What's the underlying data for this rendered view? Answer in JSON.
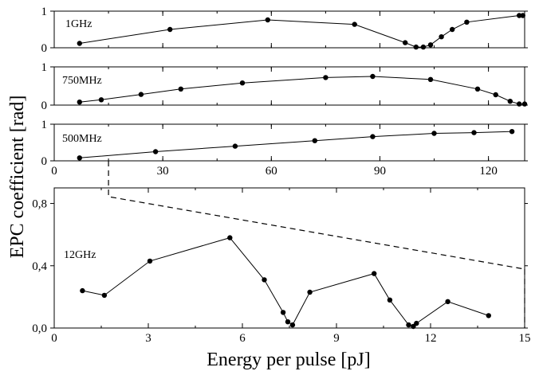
{
  "colors": {
    "line": "#000000",
    "marker": "#000000",
    "background": "#ffffff"
  },
  "chart_data": [
    {
      "type": "line",
      "panel_label": "1GHz",
      "x": [
        7,
        32,
        59,
        83,
        97,
        100,
        102,
        104,
        107,
        110,
        114,
        128.5,
        129.5
      ],
      "y": [
        0.12,
        0.5,
        0.76,
        0.64,
        0.14,
        0.02,
        0.02,
        0.08,
        0.3,
        0.5,
        0.7,
        0.88,
        0.88
      ],
      "xlim": [
        0,
        130
      ],
      "ylim": [
        0,
        1
      ],
      "yticks": [
        "0",
        "1"
      ],
      "xticklabels_shown": false
    },
    {
      "type": "line",
      "panel_label": "750MHz",
      "x": [
        7,
        13,
        24,
        35,
        52,
        75,
        88,
        104,
        117,
        122,
        126,
        128.5,
        130
      ],
      "y": [
        0.08,
        0.14,
        0.28,
        0.42,
        0.58,
        0.72,
        0.75,
        0.67,
        0.42,
        0.27,
        0.1,
        0.03,
        0.03
      ],
      "xlim": [
        0,
        130
      ],
      "ylim": [
        0,
        1
      ],
      "yticks": [
        "0",
        "1"
      ],
      "xticklabels_shown": false
    },
    {
      "type": "line",
      "panel_label": "500MHz",
      "x": [
        7,
        28,
        50,
        72,
        88,
        105,
        116,
        126.5
      ],
      "y": [
        0.08,
        0.25,
        0.4,
        0.55,
        0.66,
        0.75,
        0.77,
        0.8
      ],
      "xlim": [
        0,
        130
      ],
      "ylim": [
        0,
        1
      ],
      "yticks": [
        "0",
        "1"
      ],
      "xticks": [
        "0",
        "30",
        "60",
        "90",
        "120"
      ]
    },
    {
      "type": "line",
      "panel_label": "12GHz",
      "x": [
        0.9,
        1.6,
        3.05,
        5.6,
        6.7,
        7.3,
        7.45,
        7.6,
        8.15,
        10.2,
        10.7,
        11.3,
        11.45,
        11.55,
        12.55,
        13.85
      ],
      "y": [
        0.24,
        0.21,
        0.43,
        0.58,
        0.31,
        0.1,
        0.04,
        0.02,
        0.23,
        0.35,
        0.18,
        0.02,
        0.01,
        0.03,
        0.17,
        0.08
      ],
      "xlim": [
        0,
        15
      ],
      "ylim": [
        0,
        0.9
      ],
      "yticks": [
        "0,0",
        "0,4",
        "0,8"
      ],
      "xticks": [
        "0",
        "3",
        "6",
        "9",
        "12",
        "15"
      ],
      "xlabel": "Energy per pulse [pJ]"
    }
  ],
  "ylabel": "EPC coefficient [rad]",
  "zoom_indicator": {
    "from_x": 15,
    "to_x": 130,
    "style": "dashed"
  }
}
